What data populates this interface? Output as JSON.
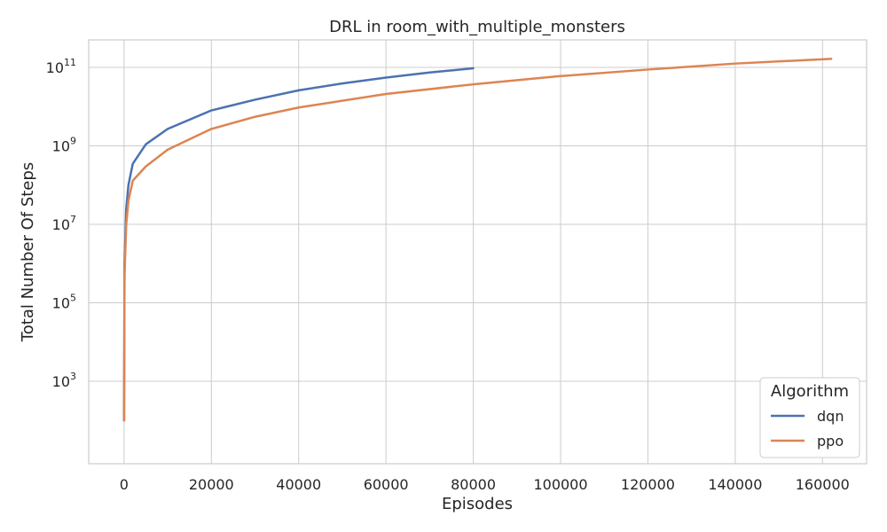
{
  "chart_data": {
    "type": "line",
    "title": "DRL in room_with_multiple_monsters",
    "xlabel": "Episodes",
    "ylabel": "Total Number Of Steps",
    "yscale": "log",
    "xlim": [
      -8100,
      170100
    ],
    "ylim_log10": [
      0.9,
      11.7
    ],
    "x_ticks": [
      0,
      20000,
      40000,
      60000,
      80000,
      100000,
      120000,
      140000,
      160000
    ],
    "y_ticks": [
      {
        "base": "10",
        "exp": "3"
      },
      {
        "base": "10",
        "exp": "5"
      },
      {
        "base": "10",
        "exp": "7"
      },
      {
        "base": "10",
        "exp": "9"
      },
      {
        "base": "10",
        "exp": "11"
      }
    ],
    "grid": true,
    "legend": {
      "title": "Algorithm",
      "position": "lower-right"
    },
    "series": [
      {
        "name": "dqn",
        "color": "#4c72b0",
        "points": [
          [
            1,
            100
          ],
          [
            100,
            1000000.0
          ],
          [
            500,
            25000000.0
          ],
          [
            1000,
            100000000.0
          ],
          [
            2000,
            350000000.0
          ],
          [
            5000,
            1100000000.0
          ],
          [
            10000,
            2700000000.0
          ],
          [
            20000,
            8000000000.0
          ],
          [
            30000,
            15000000000.0
          ],
          [
            40000,
            26000000000.0
          ],
          [
            50000,
            39000000000.0
          ],
          [
            60000,
            55000000000.0
          ],
          [
            70000,
            74000000000.0
          ],
          [
            80000,
            95000000000.0
          ]
        ]
      },
      {
        "name": "ppo",
        "color": "#dd8452",
        "points": [
          [
            1,
            100
          ],
          [
            100,
            500000.0
          ],
          [
            500,
            10000000.0
          ],
          [
            1000,
            40000000.0
          ],
          [
            2000,
            130000000.0
          ],
          [
            5000,
            300000000.0
          ],
          [
            10000,
            800000000.0
          ],
          [
            20000,
            2700000000.0
          ],
          [
            30000,
            5500000000.0
          ],
          [
            40000,
            9500000000.0
          ],
          [
            60000,
            21000000000.0
          ],
          [
            80000,
            37000000000.0
          ],
          [
            100000,
            60000000000.0
          ],
          [
            120000,
            88000000000.0
          ],
          [
            140000,
            125000000000.0
          ],
          [
            162000,
            165000000000.0
          ]
        ]
      }
    ]
  }
}
